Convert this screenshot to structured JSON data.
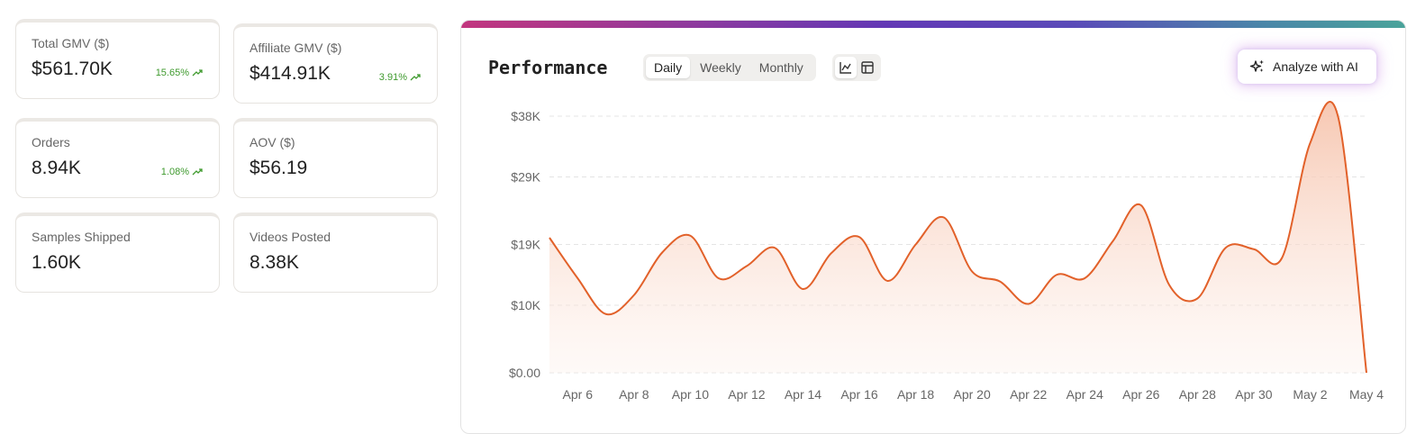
{
  "metrics": [
    {
      "label": "Total GMV ($)",
      "value": "$561.70K",
      "delta": "15.65%",
      "active": true
    },
    {
      "label": "Affiliate GMV ($)",
      "value": "$414.91K",
      "delta": "3.91%",
      "active": false
    },
    {
      "label": "Orders",
      "value": "8.94K",
      "delta": "1.08%",
      "active": false
    },
    {
      "label": "AOV ($)",
      "value": "$56.19",
      "delta": "",
      "active": false
    },
    {
      "label": "Samples Shipped",
      "value": "1.60K",
      "delta": "",
      "active": false
    },
    {
      "label": "Videos Posted",
      "value": "8.38K",
      "delta": "",
      "active": false
    }
  ],
  "panel": {
    "title": "Performance",
    "periods": [
      "Daily",
      "Weekly",
      "Monthly"
    ],
    "selected_period": "Daily",
    "view_icons": [
      "line-chart-icon",
      "table-icon"
    ],
    "ai_button_label": "Analyze with AI",
    "accent": "#e2612a"
  },
  "chart_data": {
    "type": "area",
    "title": "",
    "xlabel": "",
    "ylabel": "",
    "y_ticks": [
      0,
      10000,
      19000,
      29000,
      38000
    ],
    "y_tick_labels": [
      "$0.00",
      "$10K",
      "$19K",
      "$29K",
      "$38K"
    ],
    "ylim": [
      0,
      38000
    ],
    "grid": true,
    "x_tick_labels": [
      "Apr 6",
      "Apr 8",
      "Apr 10",
      "Apr 12",
      "Apr 14",
      "Apr 16",
      "Apr 18",
      "Apr 20",
      "Apr 22",
      "Apr 24",
      "Apr 26",
      "Apr 28",
      "Apr 30",
      "May 2",
      "May 4"
    ],
    "series": [
      {
        "color": "#e2612a",
        "x": [
          "Apr 5",
          "Apr 6",
          "Apr 7",
          "Apr 8",
          "Apr 9",
          "Apr 10",
          "Apr 11",
          "Apr 12",
          "Apr 13",
          "Apr 14",
          "Apr 15",
          "Apr 16",
          "Apr 17",
          "Apr 18",
          "Apr 19",
          "Apr 20",
          "Apr 21",
          "Apr 22",
          "Apr 23",
          "Apr 24",
          "Apr 25",
          "Apr 26",
          "Apr 27",
          "Apr 28",
          "Apr 29",
          "Apr 30",
          "May 1",
          "May 2",
          "May 3",
          "May 4"
        ],
        "values": [
          20000,
          14000,
          8700,
          11500,
          17800,
          20300,
          14000,
          15800,
          18500,
          12400,
          17700,
          20100,
          13600,
          19000,
          23000,
          15000,
          13500,
          10200,
          14500,
          14000,
          19500,
          24800,
          13000,
          11000,
          18500,
          18300,
          17000,
          34000,
          37800,
          0
        ]
      }
    ]
  }
}
